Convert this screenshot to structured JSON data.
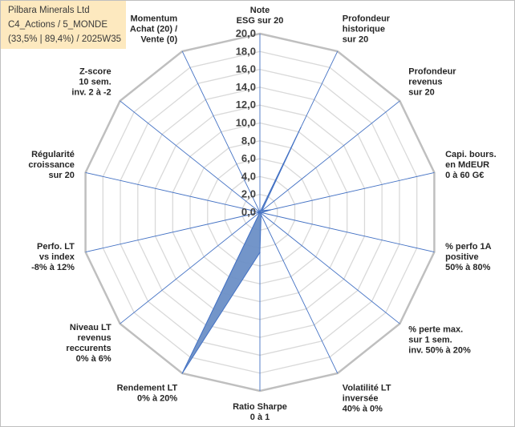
{
  "title": {
    "line1": "Pilbara Minerals Ltd",
    "line2": "C4_Actions / 5_MONDE",
    "line3": "(33,5% | 89,4%) / 2025W35"
  },
  "colors": {
    "fill": "#6b8fc6",
    "stroke": "#4472c4",
    "grid": "#d9d9d9",
    "spoke": "#4472c4",
    "title_bg": "#fde9bf"
  },
  "chart_data": {
    "type": "radar",
    "rmin": 0,
    "rmax": 20,
    "tick_step": 2,
    "tick_labels": [
      "0,0",
      "2,0",
      "4,0",
      "6,0",
      "8,0",
      "10,0",
      "12,0",
      "14,0",
      "16,0",
      "18,0",
      "20,0"
    ],
    "axes": [
      [
        "Note",
        "ESG sur 20"
      ],
      [
        "Profondeur",
        "historique",
        "sur 20"
      ],
      [
        "Profondeur",
        "revenus",
        "sur 20"
      ],
      [
        "Capi. bours.",
        "en MdEUR",
        "0 à 60 G€"
      ],
      [
        "% perfo 1A",
        "positive",
        "50% à 80%"
      ],
      [
        "% perte max.",
        "sur 1 sem.",
        "inv. 50% à 20%"
      ],
      [
        "Volatilité LT",
        "inversée",
        "40% à 0%"
      ],
      [
        "Ratio Sharpe",
        "0 à 1"
      ],
      [
        "Rendement LT",
        "0% à 20%"
      ],
      [
        "Niveau LT",
        "revenus",
        "reccurents",
        "0% à 6%"
      ],
      [
        "Perfo. LT",
        "vs index",
        "-8% à 12%"
      ],
      [
        "Régularité",
        "croissance",
        "sur 20"
      ],
      [
        "Z-score",
        "10 sem.",
        "inv. 2 à -2"
      ],
      [
        "Momentum",
        "Achat (20) /",
        "Vente (0)"
      ]
    ],
    "values": [
      0,
      10.5,
      0.3,
      1.2,
      0.2,
      0.1,
      0.3,
      4.5,
      20,
      0,
      0,
      0,
      0,
      0
    ]
  }
}
